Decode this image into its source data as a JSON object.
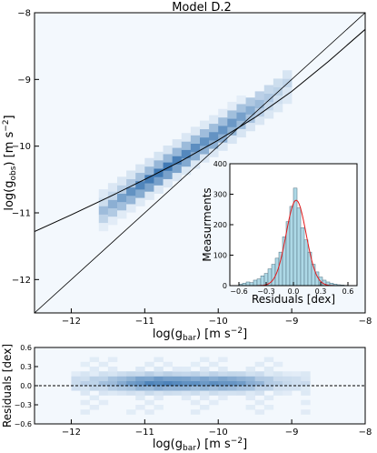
{
  "figure": {
    "title": "Model D.2"
  },
  "chart_data": [
    {
      "type": "heatmap",
      "title": "Model D.2",
      "xlabel": "log(g_bar) [m s^-2]",
      "ylabel": "log(g_obs) [m s^-2]",
      "xlim": [
        -12.5,
        -8
      ],
      "ylim": [
        -12.5,
        -8
      ],
      "xticks": [
        -12,
        -11,
        -10,
        -9,
        -8
      ],
      "yticks": [
        -12,
        -11,
        -10,
        -9,
        -8
      ],
      "colormap": "Blues",
      "density_ridge": [
        [
          -11.6,
          -11.0
        ],
        [
          -11.4,
          -10.85
        ],
        [
          -11.2,
          -10.7
        ],
        [
          -11.0,
          -10.55
        ],
        [
          -10.8,
          -10.4
        ],
        [
          -10.6,
          -10.25
        ],
        [
          -10.4,
          -10.1
        ],
        [
          -10.2,
          -9.95
        ],
        [
          -10.0,
          -9.82
        ],
        [
          -9.8,
          -9.65
        ],
        [
          -9.6,
          -9.5
        ],
        [
          -9.4,
          -9.35
        ],
        [
          -9.2,
          -9.2
        ],
        [
          -9.0,
          -9.0
        ]
      ],
      "lines": [
        {
          "label": "one-to-one",
          "x": [
            -12.5,
            -8
          ],
          "y": [
            -12.5,
            -8
          ]
        },
        {
          "label": "fitted relation",
          "x": [
            -12.5,
            -12.0,
            -11.5,
            -11.0,
            -10.5,
            -10.0,
            -9.5,
            -9.0,
            -8.5,
            -8.0
          ],
          "y": [
            -11.28,
            -11.03,
            -10.77,
            -10.5,
            -10.22,
            -9.91,
            -9.57,
            -9.18,
            -8.73,
            -8.25
          ]
        }
      ]
    },
    {
      "type": "bar",
      "subtype": "histogram",
      "xlabel": "Residuals [dex]",
      "ylabel": "Measurments",
      "xlim": [
        -0.7,
        0.7
      ],
      "ylim": [
        0,
        400
      ],
      "xticks": [
        -0.6,
        -0.3,
        0.0,
        0.3,
        0.6
      ],
      "yticks": [
        0,
        100,
        200,
        300,
        400
      ],
      "bin_width": 0.04,
      "bin_centers": [
        -0.58,
        -0.54,
        -0.5,
        -0.46,
        -0.42,
        -0.38,
        -0.34,
        -0.3,
        -0.26,
        -0.22,
        -0.18,
        -0.14,
        -0.1,
        -0.06,
        -0.02,
        0.02,
        0.06,
        0.1,
        0.14,
        0.18,
        0.22,
        0.26,
        0.3,
        0.34,
        0.38,
        0.42,
        0.46,
        0.5,
        0.54,
        0.58
      ],
      "values": [
        5,
        8,
        12,
        10,
        18,
        22,
        32,
        40,
        55,
        70,
        90,
        110,
        160,
        210,
        260,
        320,
        255,
        190,
        150,
        110,
        70,
        45,
        28,
        18,
        12,
        8,
        5,
        3,
        2,
        1
      ],
      "fit": {
        "type": "gaussian",
        "mean": 0.03,
        "sigma": 0.11,
        "amplitude": 280
      },
      "bar_color": "#add8e6",
      "fit_color": "#e41a1c"
    },
    {
      "type": "heatmap",
      "xlabel": "log(g_bar) [m s^-2]",
      "ylabel": "Residuals [dex]",
      "xlim": [
        -12.5,
        -8
      ],
      "ylim": [
        -0.6,
        0.6
      ],
      "xticks": [
        -12,
        -11,
        -10,
        -9,
        -8
      ],
      "yticks": [
        -0.6,
        -0.3,
        0.0,
        0.3,
        0.6
      ],
      "colormap": "Blues",
      "reference_line": 0
    }
  ],
  "colors": {
    "heat_low": "#eef5fc",
    "heat_high": "#2a6aab",
    "hist_bar": "#add8e6",
    "fit": "#e41a1c"
  }
}
